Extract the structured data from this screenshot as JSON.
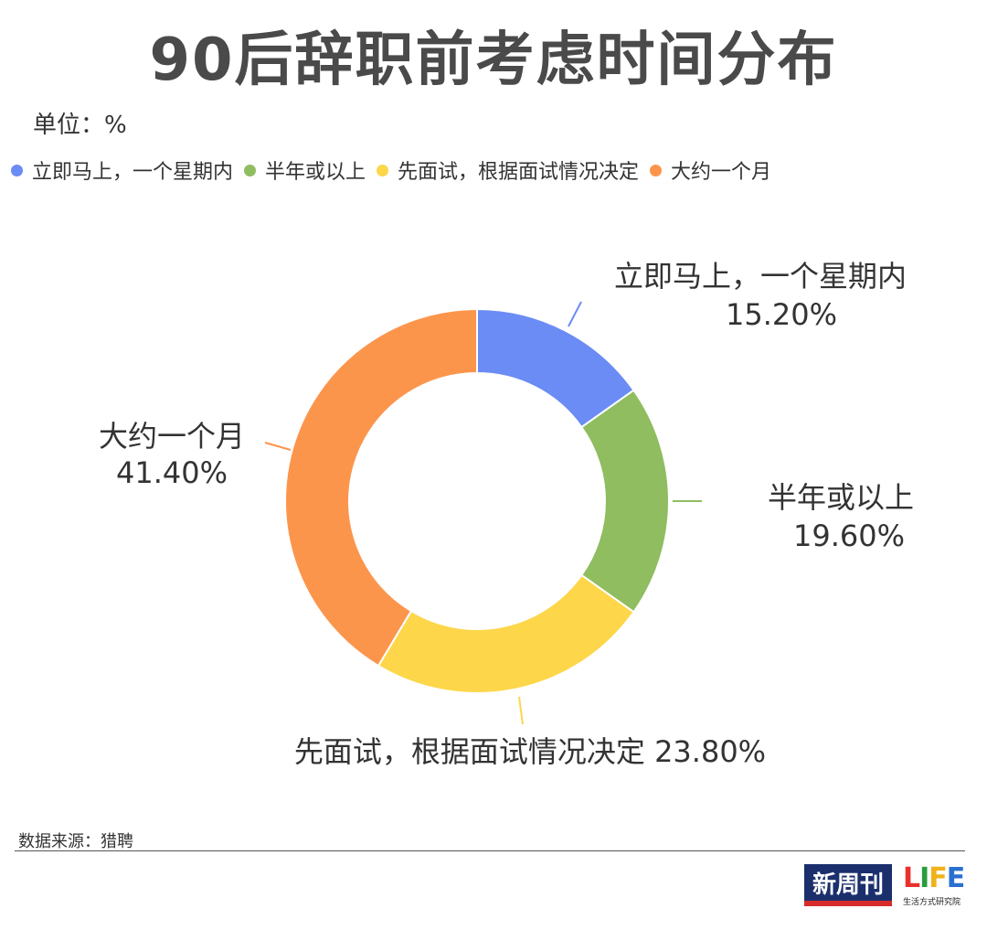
{
  "title": "90后辞职前考虑时间分布",
  "unit_label": "单位：%",
  "source": "数据来源：猎聘",
  "logos": {
    "left_logo_text": "新周刊",
    "right_logo_word": "LIFE",
    "right_logo_sub": "生活方式研究院"
  },
  "colors": {
    "blue": "#6b8cf4",
    "green": "#8fbd5f",
    "yellow": "#fdd64a",
    "orange": "#fc954c"
  },
  "chart_data": {
    "type": "pie",
    "donut": true,
    "legend_position": "top-left",
    "slices": [
      {
        "label": "立即马上，一个星期内",
        "value": 15.2,
        "value_text": "15.20%",
        "color": "#6b8cf4"
      },
      {
        "label": "半年或以上",
        "value": 19.6,
        "value_text": "19.60%",
        "color": "#8fbd5f"
      },
      {
        "label": "先面试，根据面试情况决定",
        "value": 23.8,
        "value_text": "23.80%",
        "color": "#fdd64a"
      },
      {
        "label": "大约一个月",
        "value": 41.4,
        "value_text": "41.40%",
        "color": "#fc954c"
      }
    ]
  }
}
